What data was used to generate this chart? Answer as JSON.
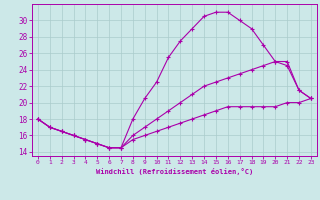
{
  "xlabel": "Windchill (Refroidissement éolien,°C)",
  "xlim": [
    -0.5,
    23.5
  ],
  "ylim": [
    13.5,
    32
  ],
  "yticks": [
    14,
    16,
    18,
    20,
    22,
    24,
    26,
    28,
    30
  ],
  "xticks": [
    0,
    1,
    2,
    3,
    4,
    5,
    6,
    7,
    8,
    9,
    10,
    11,
    12,
    13,
    14,
    15,
    16,
    17,
    18,
    19,
    20,
    21,
    22,
    23
  ],
  "background_color": "#cce8e8",
  "grid_color": "#aacccc",
  "line_color": "#aa00aa",
  "line1_x": [
    0,
    1,
    2,
    3,
    4,
    5,
    6,
    7,
    8,
    9,
    10,
    11,
    12,
    13,
    14,
    15,
    16,
    17,
    18,
    19,
    20,
    21,
    22,
    23
  ],
  "line1_y": [
    18.0,
    17.0,
    16.5,
    16.0,
    15.5,
    15.0,
    14.5,
    14.5,
    18.0,
    20.5,
    22.5,
    25.5,
    27.5,
    29.0,
    30.5,
    31.0,
    31.0,
    30.0,
    29.0,
    27.0,
    25.0,
    24.5,
    21.5,
    20.5
  ],
  "line2_x": [
    0,
    1,
    2,
    3,
    4,
    5,
    6,
    7,
    8,
    9,
    10,
    11,
    12,
    13,
    14,
    15,
    16,
    17,
    18,
    19,
    20,
    21,
    22,
    23
  ],
  "line2_y": [
    18.0,
    17.0,
    16.5,
    16.0,
    15.5,
    15.0,
    14.5,
    14.5,
    16.0,
    17.0,
    18.0,
    19.0,
    20.0,
    21.0,
    22.0,
    22.5,
    23.0,
    23.5,
    24.0,
    24.5,
    25.0,
    25.0,
    21.5,
    20.5
  ],
  "line3_x": [
    0,
    1,
    2,
    3,
    4,
    5,
    6,
    7,
    8,
    9,
    10,
    11,
    12,
    13,
    14,
    15,
    16,
    17,
    18,
    19,
    20,
    21,
    22,
    23
  ],
  "line3_y": [
    18.0,
    17.0,
    16.5,
    16.0,
    15.5,
    15.0,
    14.5,
    14.5,
    15.5,
    16.0,
    16.5,
    17.0,
    17.5,
    18.0,
    18.5,
    19.0,
    19.5,
    19.5,
    19.5,
    19.5,
    19.5,
    20.0,
    20.0,
    20.5
  ]
}
